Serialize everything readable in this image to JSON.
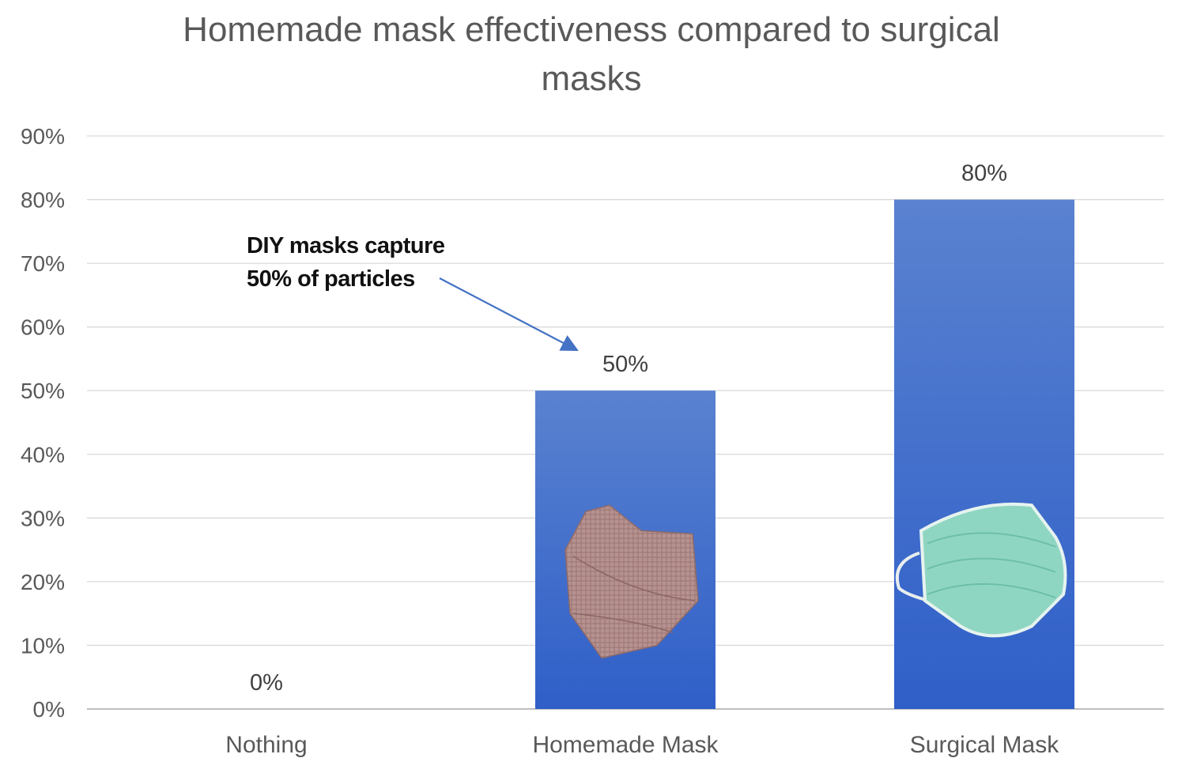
{
  "colors": {
    "bar_top": "#5a82d0",
    "bar_bottom": "#2f5fc8",
    "gridline": "#d9d9d9",
    "axis": "#bfbfbf",
    "arrow": "#4472c4",
    "homemade_mask": "#b08a86",
    "surgical_mask": "#8fd6c2"
  },
  "icons": {
    "homemade": "cloth-mask-icon",
    "surgical": "surgical-mask-icon"
  },
  "chart_data": {
    "type": "bar",
    "title_line1": "Homemade mask effectiveness compared to surgical",
    "title_line2": "masks",
    "categories": [
      "Nothing",
      "Homemade Mask",
      "Surgical Mask"
    ],
    "values": [
      0,
      0.5,
      0.8
    ],
    "data_labels": [
      "0%",
      "50%",
      "80%"
    ],
    "ylim": [
      0,
      0.9
    ],
    "yticks": [
      {
        "value": 0,
        "label": "0%"
      },
      {
        "value": 0.1,
        "label": "10%"
      },
      {
        "value": 0.2,
        "label": "20%"
      },
      {
        "value": 0.3,
        "label": "30%"
      },
      {
        "value": 0.4,
        "label": "40%"
      },
      {
        "value": 0.5,
        "label": "50%"
      },
      {
        "value": 0.6,
        "label": "60%"
      },
      {
        "value": 0.7,
        "label": "70%"
      },
      {
        "value": 0.8,
        "label": "80%"
      },
      {
        "value": 0.9,
        "label": "90%"
      }
    ],
    "grid": true,
    "annotation": {
      "line1": "DIY masks capture",
      "line2": "50% of particles",
      "target_category": "Homemade Mask"
    }
  }
}
